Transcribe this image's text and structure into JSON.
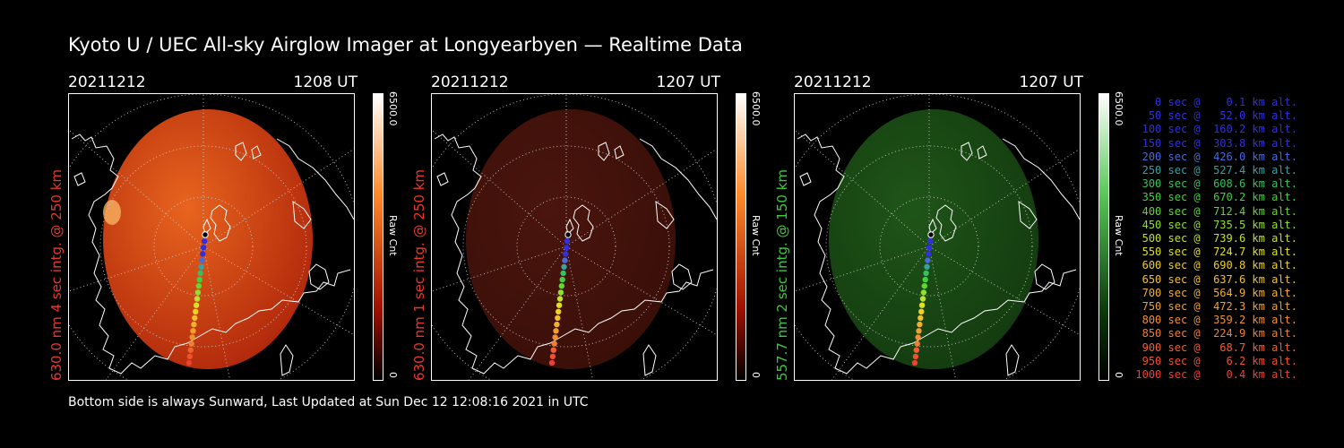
{
  "title": "Kyoto U / UEC All-sky Airglow Imager at Longyearbyen — Realtime Data",
  "footer": "Bottom side is always Sunward, Last Updated at Sun Dec 12 12:08:16 2021 in UTC",
  "panels": [
    {
      "date": "20211212",
      "time": "1208 UT",
      "side_label": "630.0 nm  4 sec intg. @ 250 km",
      "side_color": "#e8382a",
      "cbar_max": "6500.0",
      "cbar_unit": "Raw Cnt",
      "cbar_min": "0",
      "glow_inner": "#e8641e",
      "glow_outer": "#b22a0c",
      "cbar_top": "#ffffff",
      "cbar_mid": "#ff8a2a",
      "cbar_low": "#a01000"
    },
    {
      "date": "20211212",
      "time": "1207 UT",
      "side_label": "630.0 nm  1 sec intg. @ 250 km",
      "side_color": "#e8382a",
      "cbar_max": "6500.0",
      "cbar_unit": "Raw Cnt",
      "cbar_min": "0",
      "glow_inner": "#4a150e",
      "glow_outer": "#3a0f08",
      "cbar_top": "#ffffff",
      "cbar_mid": "#ff8a2a",
      "cbar_low": "#a01000"
    },
    {
      "date": "20211212",
      "time": "1207 UT",
      "side_label": "557.7 nm  2 sec intg. @ 150 km",
      "side_color": "#3ec83e",
      "cbar_max": "6500.0",
      "cbar_unit": "Raw Cnt",
      "cbar_min": "0",
      "glow_inner": "#1f5518",
      "glow_outer": "#143c10",
      "cbar_top": "#ffffff",
      "cbar_mid": "#58c858",
      "cbar_low": "#0c3c0c"
    }
  ],
  "legend": [
    {
      "text": "   0 sec @    0.1 km alt.",
      "color": "#3030e0"
    },
    {
      "text": "  50 sec @   52.0 km alt.",
      "color": "#3030e0"
    },
    {
      "text": " 100 sec @  160.2 km alt.",
      "color": "#3030e0"
    },
    {
      "text": " 150 sec @  303.8 km alt.",
      "color": "#3030e0"
    },
    {
      "text": " 200 sec @  426.0 km alt.",
      "color": "#4a6ad8"
    },
    {
      "text": " 250 sec @  527.4 km alt.",
      "color": "#3aa0a0"
    },
    {
      "text": " 300 sec @  608.6 km alt.",
      "color": "#38c060"
    },
    {
      "text": " 350 sec @  670.2 km alt.",
      "color": "#40d040"
    },
    {
      "text": " 400 sec @  712.4 km alt.",
      "color": "#60d830"
    },
    {
      "text": " 450 sec @  735.5 km alt.",
      "color": "#90e030"
    },
    {
      "text": " 500 sec @  739.6 km alt.",
      "color": "#c0e030"
    },
    {
      "text": " 550 sec @  724.7 km alt.",
      "color": "#e0e020"
    },
    {
      "text": " 600 sec @  690.8 km alt.",
      "color": "#f0d020"
    },
    {
      "text": " 650 sec @  637.6 km alt.",
      "color": "#f0c030"
    },
    {
      "text": " 700 sec @  564.9 km alt.",
      "color": "#f0b030"
    },
    {
      "text": " 750 sec @  472.3 km alt.",
      "color": "#f0a030"
    },
    {
      "text": " 800 sec @  359.2 km alt.",
      "color": "#f09030"
    },
    {
      "text": " 850 sec @  224.9 km alt.",
      "color": "#f08030"
    },
    {
      "text": " 900 sec @   68.7 km alt.",
      "color": "#f06030"
    },
    {
      "text": " 950 sec @    6.2 km alt.",
      "color": "#f05030"
    },
    {
      "text": "1000 sec @    0.4 km alt.",
      "color": "#f04030"
    }
  ]
}
